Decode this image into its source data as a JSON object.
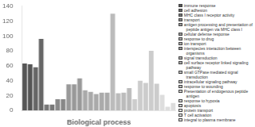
{
  "chart_data": {
    "type": "bar",
    "xlabel": "Biological process",
    "categories": [
      null,
      null,
      null,
      null,
      null,
      null,
      null,
      null,
      null,
      null,
      null,
      null,
      null,
      null,
      null,
      null,
      null,
      null,
      null,
      null,
      null,
      null,
      null,
      null,
      null,
      null,
      null,
      null
    ],
    "values": [
      63,
      62,
      58,
      96,
      8,
      8,
      15,
      15,
      35,
      35,
      43,
      27,
      25,
      22,
      24,
      24,
      130,
      23,
      24,
      30,
      15,
      40,
      37,
      80,
      36,
      21,
      5,
      10
    ],
    "colors": [
      "#555555",
      "#555555",
      "#666666",
      "#666666",
      "#777777",
      "#777777",
      "#888888",
      "#888888",
      "#999999",
      "#999999",
      "#999999",
      "#aaaaaa",
      "#aaaaaa",
      "#aaaaaa",
      "#aaaaaa",
      "#aaaaaa",
      "#bbbbbb",
      "#bbbbbb",
      "#bbbbbb",
      "#bbbbbb",
      "#cccccc",
      "#cccccc",
      "#cccccc",
      "#cccccc",
      "#cccccc",
      "#dddddd",
      "#dddddd",
      "#dddddd"
    ],
    "ylim": [
      0,
      140
    ],
    "yticks": [
      0,
      20,
      40,
      60,
      80,
      100,
      120,
      140
    ],
    "grid": false,
    "tick_labels": "y",
    "legend": "right",
    "legend_entries": [
      {
        "name": "immune response",
        "color": "#555555"
      },
      {
        "name": "cell adhesion",
        "color": "#666666"
      },
      {
        "name": "MHC class I receptor activity",
        "color": "#777777"
      },
      {
        "name": "transport",
        "color": "#888888"
      },
      {
        "name": "antigen processing and presentation of\n  peptide antigen via MHC class I",
        "color": "#999999"
      },
      {
        "name": "cellular defense response",
        "color": "#999999"
      },
      {
        "name": "response to drug",
        "color": "#aaaaaa"
      },
      {
        "name": "ion transport",
        "color": "#aaaaaa"
      },
      {
        "name": "interspecies interaction between\n  organisms",
        "color": "#999999"
      },
      {
        "name": "signal transduction",
        "color": "#aaaaaa"
      },
      {
        "name": "cell surface receptor linked signaling\n  pathway",
        "color": "#aaaaaa"
      },
      {
        "name": "small GTPase mediated signal\n  transduction",
        "color": "#bbbbbb"
      },
      {
        "name": "intracellular signaling pathway",
        "color": "#bbbbbb"
      },
      {
        "name": "response to wounding",
        "color": "#bbbbbb"
      },
      {
        "name": "Presentation of endogenous peptide\n  antigen",
        "color": "#cccccc"
      },
      {
        "name": "response to hypoxia",
        "color": "#cccccc"
      },
      {
        "name": "apoptosis",
        "color": "#cccccc"
      },
      {
        "name": "protein transport",
        "color": "#dddddd"
      },
      {
        "name": "T cell activation",
        "color": "#dddddd"
      },
      {
        "name": "integral to plasma membrane",
        "color": "#dddddd"
      }
    ]
  }
}
